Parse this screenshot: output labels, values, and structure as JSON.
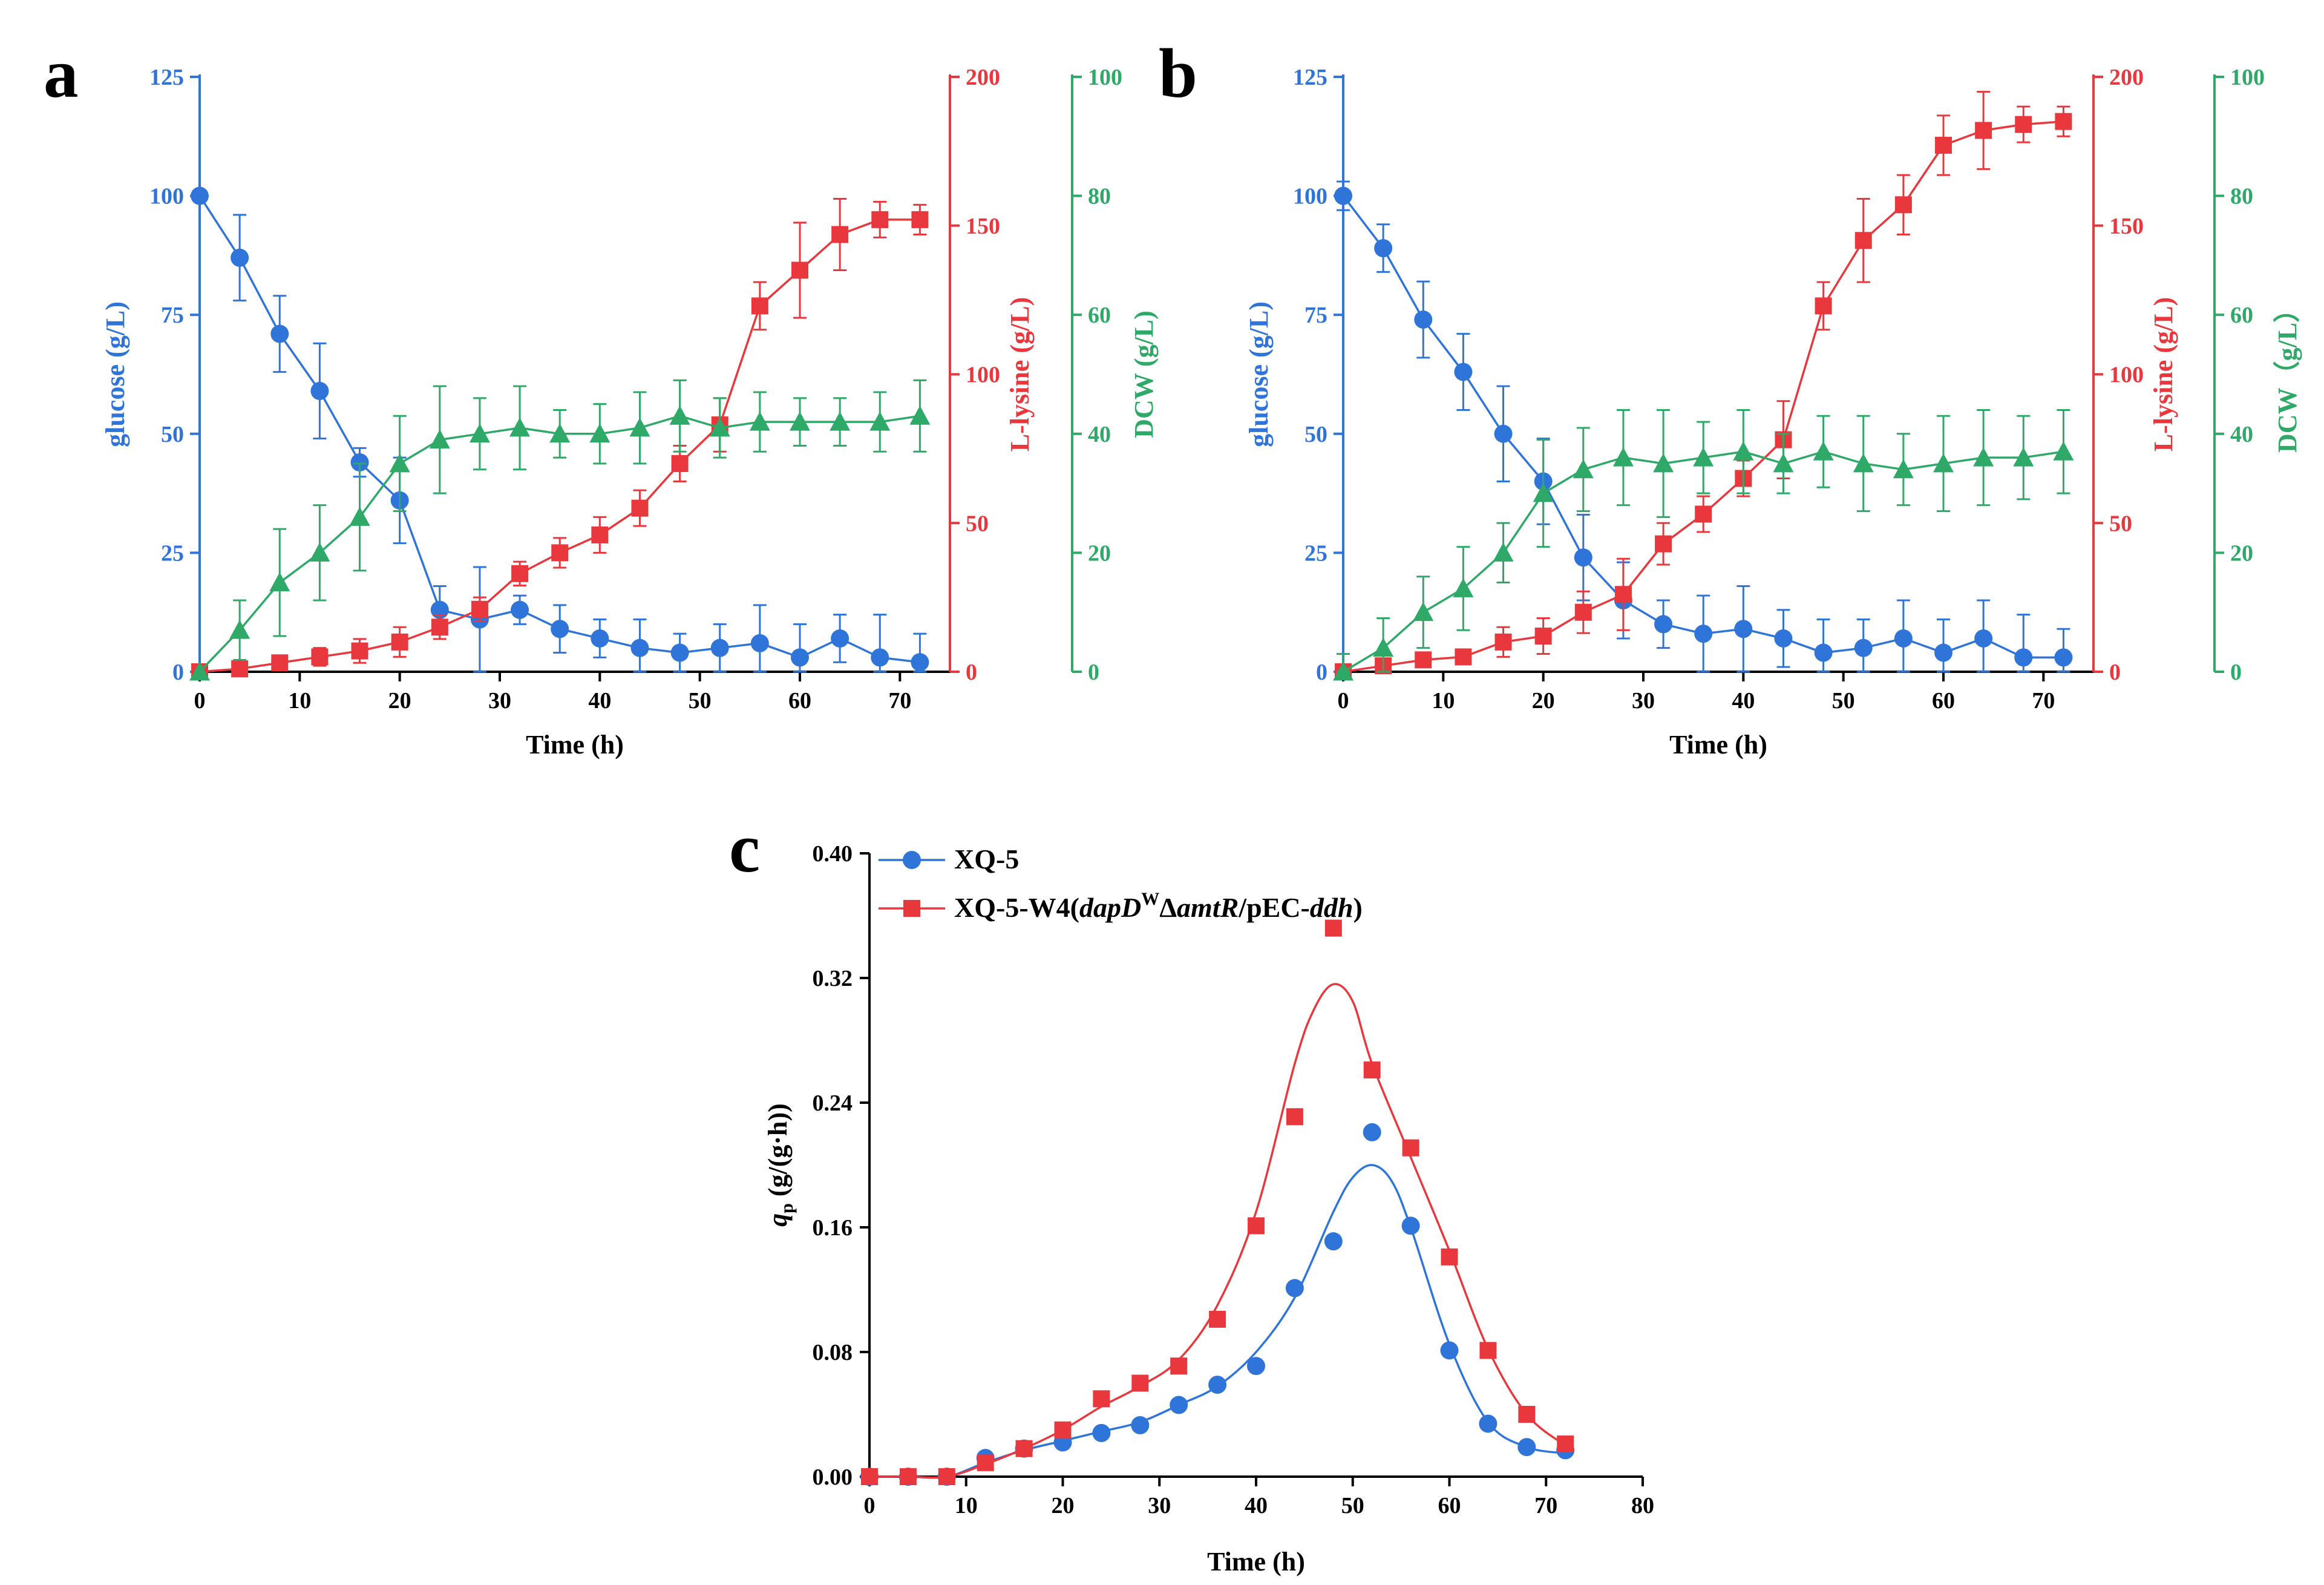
{
  "colors": {
    "glucose": "#2f74d8",
    "lysine": "#e8383d",
    "dcw": "#2ea968",
    "axis": "#000000"
  },
  "chart_data": [
    {
      "panel": "a",
      "type": "line",
      "xlabel": "Time (h)",
      "xlim": [
        0,
        75
      ],
      "xticks": [
        0,
        10,
        20,
        30,
        40,
        50,
        60,
        70
      ],
      "axes": {
        "left": {
          "label": "glucose (g/L)",
          "lim": [
            0,
            125
          ],
          "ticks": [
            0,
            25,
            50,
            75,
            100,
            125
          ],
          "color": "#2f74d8"
        },
        "right1": {
          "label": "L-lysine (g/L)",
          "lim": [
            0,
            200
          ],
          "ticks": [
            0,
            50,
            100,
            150,
            200
          ],
          "color": "#e8383d"
        },
        "right2": {
          "label": "DCW (g/L)",
          "lim": [
            0,
            100
          ],
          "ticks": [
            0,
            20,
            40,
            60,
            80,
            100
          ],
          "color": "#2ea968"
        }
      },
      "series": [
        {
          "axis": "left",
          "marker": "circle",
          "color": "#2f74d8",
          "x": [
            0,
            4,
            8,
            12,
            16,
            20,
            24,
            28,
            32,
            36,
            40,
            44,
            48,
            52,
            56,
            60,
            64,
            68,
            72
          ],
          "values": [
            100,
            87,
            71,
            59,
            44,
            36,
            13,
            11,
            13,
            9,
            7,
            5,
            4,
            5,
            6,
            3,
            7,
            3,
            2
          ],
          "errors": [
            0,
            9,
            8,
            10,
            3,
            9,
            5,
            11,
            3,
            5,
            4,
            6,
            4,
            5,
            8,
            7,
            5,
            9,
            6
          ]
        },
        {
          "axis": "right1",
          "marker": "square",
          "color": "#e8383d",
          "x": [
            0,
            4,
            8,
            12,
            16,
            20,
            24,
            28,
            32,
            36,
            40,
            44,
            48,
            52,
            56,
            60,
            64,
            68,
            72
          ],
          "values": [
            0,
            1,
            3,
            5,
            7,
            10,
            15,
            21,
            33,
            40,
            46,
            55,
            70,
            83,
            123,
            135,
            147,
            152,
            152
          ],
          "errors": [
            0,
            1,
            2,
            3,
            4,
            5,
            4,
            4,
            4,
            5,
            6,
            6,
            6,
            9,
            8,
            16,
            12,
            6,
            5
          ]
        },
        {
          "axis": "right2",
          "marker": "triangle",
          "color": "#2ea968",
          "x": [
            0,
            4,
            8,
            12,
            16,
            20,
            24,
            28,
            32,
            36,
            40,
            44,
            48,
            52,
            56,
            60,
            64,
            68,
            72
          ],
          "values": [
            0,
            7,
            15,
            20,
            26,
            35,
            39,
            40,
            41,
            40,
            40,
            41,
            43,
            41,
            42,
            42,
            42,
            42,
            43
          ],
          "errors": [
            0,
            5,
            9,
            8,
            9,
            8,
            9,
            6,
            7,
            4,
            5,
            6,
            6,
            5,
            5,
            4,
            4,
            5,
            6
          ]
        }
      ]
    },
    {
      "panel": "b",
      "type": "line",
      "xlabel": "Time (h)",
      "xlim": [
        0,
        75
      ],
      "xticks": [
        0,
        10,
        20,
        30,
        40,
        50,
        60,
        70
      ],
      "axes": {
        "left": {
          "label": "glucose (g/L)",
          "lim": [
            0,
            125
          ],
          "ticks": [
            0,
            25,
            50,
            75,
            100,
            125
          ],
          "color": "#2f74d8"
        },
        "right1": {
          "label": "L-lysine (g/L)",
          "lim": [
            0,
            200
          ],
          "ticks": [
            0,
            50,
            100,
            150,
            200
          ],
          "color": "#e8383d"
        },
        "right2": {
          "label": "DCW（g/L）",
          "lim": [
            0,
            100
          ],
          "ticks": [
            0,
            20,
            40,
            60,
            80,
            100
          ],
          "color": "#2ea968"
        }
      },
      "series": [
        {
          "axis": "left",
          "marker": "circle",
          "color": "#2f74d8",
          "x": [
            0,
            4,
            8,
            12,
            16,
            20,
            24,
            28,
            32,
            36,
            40,
            44,
            48,
            52,
            56,
            60,
            64,
            68,
            72
          ],
          "values": [
            100,
            89,
            74,
            63,
            50,
            40,
            24,
            15,
            10,
            8,
            9,
            7,
            4,
            5,
            7,
            4,
            7,
            3,
            3
          ],
          "errors": [
            3,
            5,
            8,
            8,
            10,
            9,
            9,
            8,
            5,
            8,
            9,
            6,
            7,
            6,
            8,
            7,
            8,
            9,
            6
          ]
        },
        {
          "axis": "right1",
          "marker": "square",
          "color": "#e8383d",
          "x": [
            0,
            4,
            8,
            12,
            16,
            20,
            24,
            28,
            32,
            36,
            40,
            44,
            48,
            52,
            56,
            60,
            64,
            68,
            72
          ],
          "values": [
            0,
            2,
            4,
            5,
            10,
            12,
            20,
            26,
            43,
            53,
            65,
            78,
            123,
            145,
            157,
            177,
            182,
            184,
            185
          ],
          "errors": [
            0,
            1,
            2,
            2,
            5,
            6,
            7,
            12,
            7,
            6,
            6,
            13,
            8,
            14,
            10,
            10,
            13,
            6,
            5
          ]
        },
        {
          "axis": "right2",
          "marker": "triangle",
          "color": "#2ea968",
          "x": [
            0,
            4,
            8,
            12,
            16,
            20,
            24,
            28,
            32,
            36,
            40,
            44,
            48,
            52,
            56,
            60,
            64,
            68,
            72
          ],
          "values": [
            0,
            4,
            10,
            14,
            20,
            30,
            34,
            36,
            35,
            36,
            37,
            35,
            37,
            35,
            34,
            35,
            36,
            36,
            37
          ],
          "errors": [
            3,
            5,
            6,
            7,
            5,
            9,
            7,
            8,
            9,
            6,
            7,
            5,
            6,
            8,
            6,
            8,
            8,
            7,
            7
          ]
        }
      ]
    },
    {
      "panel": "c",
      "type": "scatter",
      "xlabel": "Time (h)",
      "xlim": [
        0,
        80
      ],
      "xticks": [
        0,
        10,
        20,
        30,
        40,
        50,
        60,
        70,
        80
      ],
      "ylabel_main": "q",
      "ylabel_sub": "p",
      "ylabel_rest": " (g/(g·h))",
      "ylim": [
        0,
        0.4
      ],
      "yticks": [
        "0.00",
        "0.08",
        "0.16",
        "0.24",
        "0.32",
        "0.40"
      ],
      "legend_position": "top-left",
      "series": [
        {
          "name": "XQ-5",
          "marker": "circle",
          "color": "#2f74d8",
          "x": [
            0,
            4,
            8,
            12,
            16,
            20,
            24,
            28,
            32,
            36,
            40,
            44,
            48,
            52,
            56,
            60,
            64,
            68,
            72
          ],
          "values": [
            0,
            0,
            0,
            0.012,
            0.018,
            0.022,
            0.028,
            0.033,
            0.046,
            0.059,
            0.071,
            0.121,
            0.151,
            0.221,
            0.161,
            0.081,
            0.034,
            0.019,
            0.017
          ],
          "fit_x": [
            0,
            4,
            8,
            12,
            16,
            20,
            24,
            28,
            32,
            36,
            40,
            44,
            48,
            50,
            52,
            54,
            56,
            60,
            64,
            68,
            72
          ],
          "fit_y": [
            0,
            0,
            0,
            0.009,
            0.017,
            0.023,
            0.029,
            0.035,
            0.046,
            0.058,
            0.08,
            0.115,
            0.17,
            0.192,
            0.2,
            0.19,
            0.16,
            0.085,
            0.035,
            0.019,
            0.015
          ]
        },
        {
          "name": "XQ-5-W4(dapD",
          "name_sup": "W",
          "name_rest": "ΔamtR/pEC-ddh)",
          "marker": "square",
          "color": "#e8383d",
          "x": [
            0,
            4,
            8,
            12,
            16,
            20,
            24,
            28,
            32,
            36,
            40,
            44,
            48,
            52,
            56,
            60,
            64,
            68,
            72
          ],
          "values": [
            0,
            0,
            0,
            0.009,
            0.018,
            0.03,
            0.05,
            0.06,
            0.071,
            0.101,
            0.161,
            0.231,
            0.352,
            0.261,
            0.211,
            0.141,
            0.081,
            0.04,
            0.021
          ],
          "fit_x": [
            0,
            4,
            8,
            12,
            16,
            20,
            24,
            28,
            32,
            36,
            40,
            44,
            46,
            48,
            50,
            52,
            56,
            60,
            64,
            68,
            72
          ],
          "fit_y": [
            0,
            0,
            0,
            0.008,
            0.018,
            0.03,
            0.045,
            0.058,
            0.075,
            0.11,
            0.17,
            0.265,
            0.3,
            0.316,
            0.305,
            0.265,
            0.205,
            0.145,
            0.082,
            0.04,
            0.02
          ]
        }
      ]
    }
  ]
}
